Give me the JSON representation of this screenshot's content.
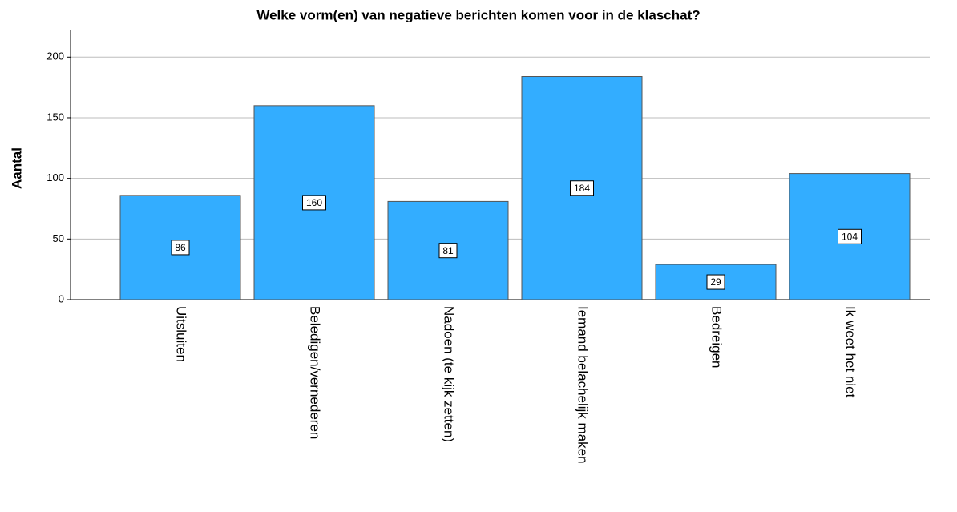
{
  "chart_data": {
    "type": "bar",
    "title": "Welke vorm(en) van negatieve berichten komen voor in de klaschat?",
    "ylabel": "Aantal",
    "categories": [
      "Uitsluiten",
      "Beledigen/vernederen",
      "Nadoen (te kijk zetten)",
      "Iemand belachelijk maken",
      "Bedreigen",
      "Ik weet het niet"
    ],
    "values": [
      86,
      160,
      81,
      184,
      29,
      104
    ],
    "color": "#33adff",
    "ylim": [
      0,
      222
    ],
    "yticks": [
      0,
      50,
      100,
      150,
      200
    ],
    "grid": true
  }
}
